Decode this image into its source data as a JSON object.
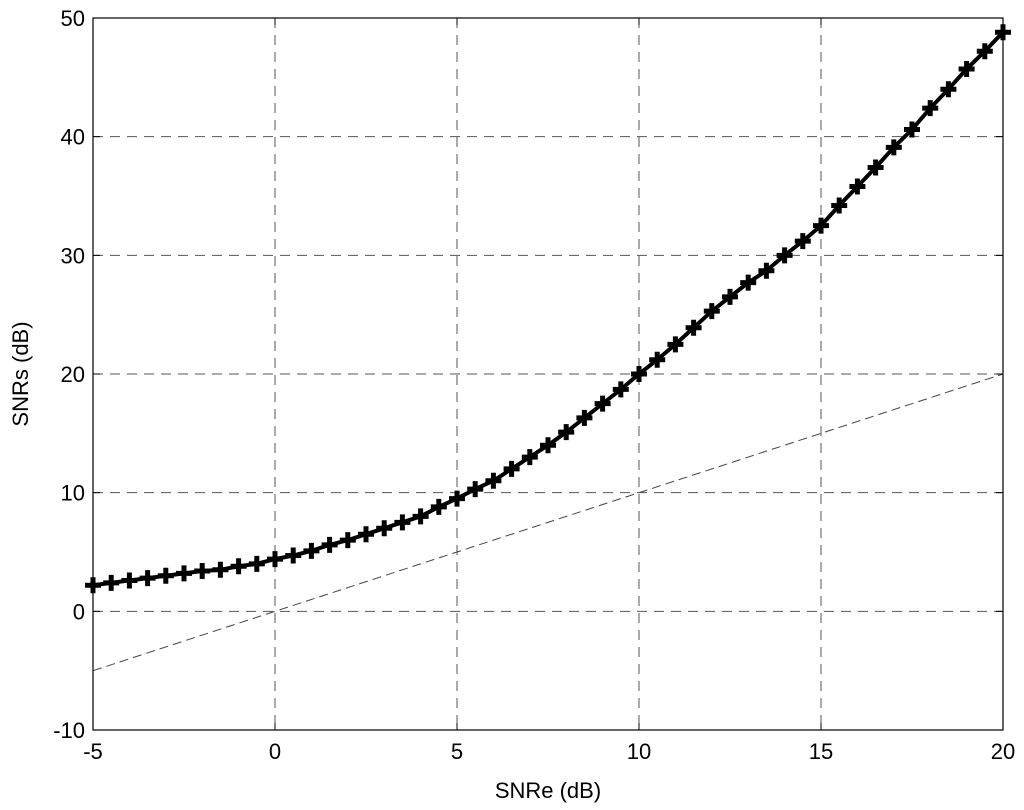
{
  "chart_data": {
    "type": "line",
    "xlabel": "SNRe (dB)",
    "ylabel": "SNRs (dB)",
    "xlim": [
      -5,
      20
    ],
    "ylim": [
      -10,
      50
    ],
    "xticks": [
      -5,
      0,
      5,
      10,
      15,
      20
    ],
    "yticks": [
      -10,
      0,
      10,
      20,
      30,
      40,
      50
    ],
    "xtick_labels": [
      "-5",
      "0",
      "5",
      "10",
      "15",
      "20"
    ],
    "ytick_labels": [
      "-10",
      "0",
      "10",
      "20",
      "30",
      "40",
      "50"
    ],
    "grid": true,
    "grid_style": "dashed",
    "colors": {
      "series": "#000000",
      "grid": "#555555",
      "reference": "#444444"
    },
    "series": [
      {
        "style": "solid-thick-with-plus-markers",
        "x": [
          -5,
          -4.5,
          -4,
          -3.5,
          -3,
          -2.5,
          -2,
          -1.5,
          -1,
          -0.5,
          0,
          0.5,
          1,
          1.5,
          2,
          2.5,
          3,
          3.5,
          4,
          4.5,
          5,
          5.5,
          6,
          6.5,
          7,
          7.5,
          8,
          8.5,
          9,
          9.5,
          10,
          10.5,
          11,
          11.5,
          12,
          12.5,
          13,
          13.5,
          14,
          14.5,
          15,
          15.5,
          16,
          16.5,
          17,
          17.5,
          18,
          18.5,
          19,
          19.5,
          20
        ],
        "y": [
          2.2,
          2.4,
          2.6,
          2.8,
          3.0,
          3.2,
          3.4,
          3.5,
          3.8,
          4.0,
          4.4,
          4.7,
          5.1,
          5.6,
          6.0,
          6.5,
          7.0,
          7.5,
          8.0,
          8.8,
          9.5,
          10.3,
          11.0,
          12.0,
          13.0,
          14.0,
          15.1,
          16.3,
          17.5,
          18.7,
          20.0,
          21.2,
          22.5,
          23.9,
          25.3,
          26.5,
          27.7,
          28.7,
          30.0,
          31.2,
          32.5,
          34.2,
          35.8,
          37.4,
          39.1,
          40.6,
          42.4,
          44.0,
          45.7,
          47.2,
          48.8
        ]
      },
      {
        "style": "dashed-thin",
        "x": [
          -5,
          20
        ],
        "y": [
          -5,
          20
        ]
      }
    ]
  }
}
